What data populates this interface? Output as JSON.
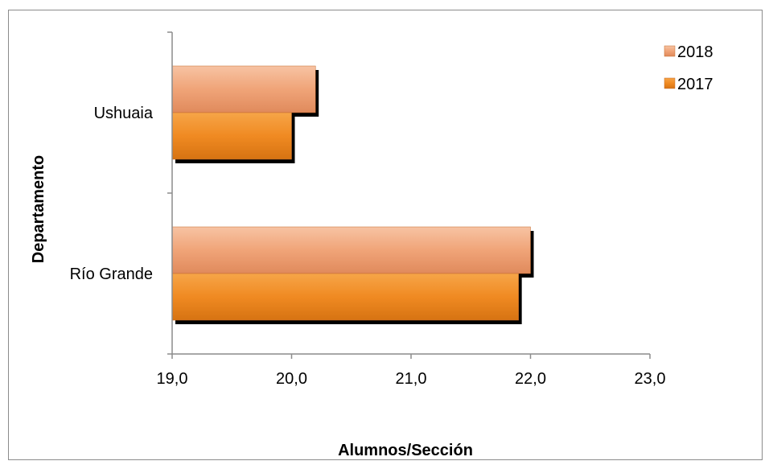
{
  "chart_data": {
    "type": "bar",
    "orientation": "horizontal",
    "categories": [
      "Ushuaia",
      "Río Grande"
    ],
    "series": [
      {
        "name": "2018",
        "values": [
          20.2,
          22.0
        ],
        "color": "#f0a478"
      },
      {
        "name": "2017",
        "values": [
          20.0,
          21.9
        ],
        "color": "#f08a22"
      }
    ],
    "xlabel": "Alumnos/Sección",
    "ylabel": "Departamento",
    "xlim": [
      19.0,
      23.0
    ],
    "xticks": [
      "19,0",
      "20,0",
      "21,0",
      "22,0",
      "23,0"
    ],
    "grid": false,
    "legend_position": "top-right"
  }
}
